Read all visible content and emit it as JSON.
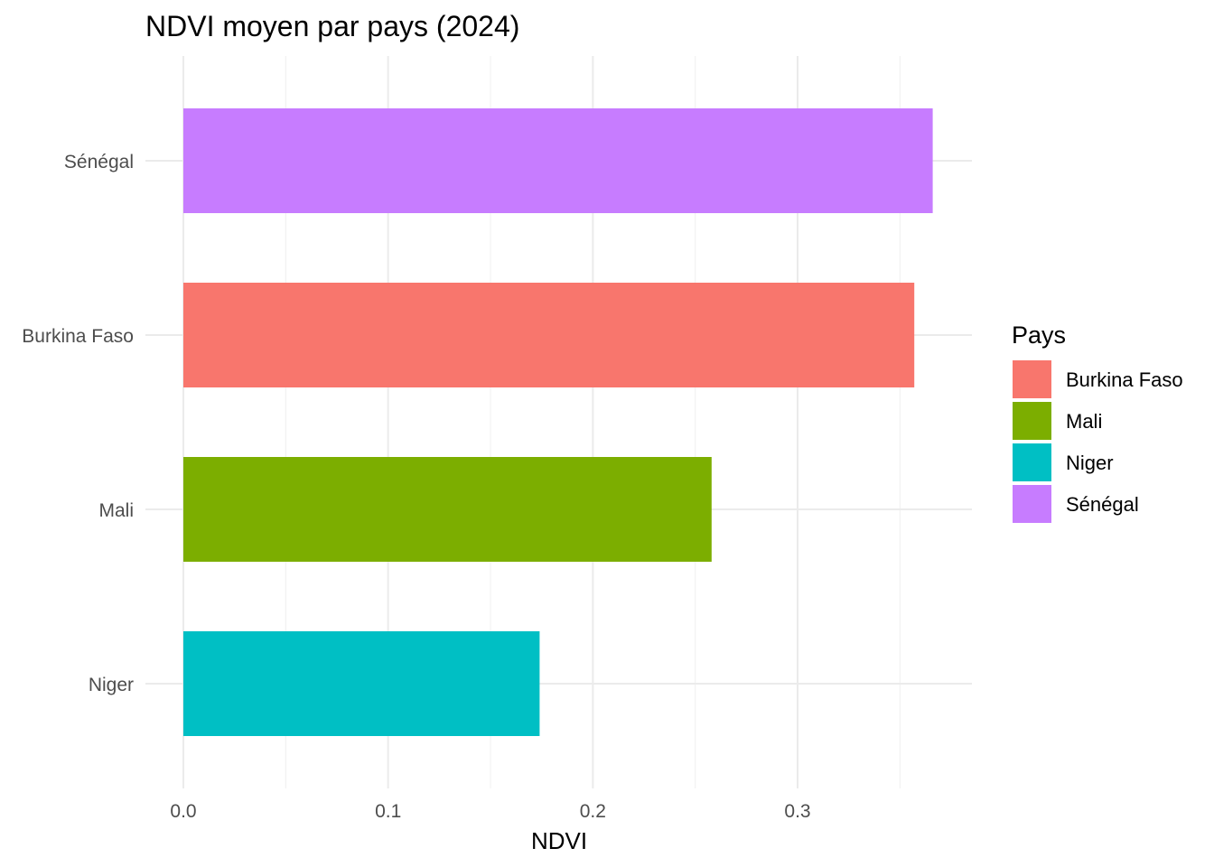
{
  "chart_data": {
    "type": "bar",
    "orientation": "horizontal",
    "title": "NDVI moyen par pays (2024)",
    "xlabel": "NDVI",
    "ylabel": "",
    "categories": [
      "Sénégal",
      "Burkina Faso",
      "Mali",
      "Niger"
    ],
    "values": [
      0.366,
      0.357,
      0.258,
      0.174
    ],
    "colors": [
      "#C77CFF",
      "#F8766D",
      "#7CAE00",
      "#00BFC4"
    ],
    "xlim": [
      0,
      0.385
    ],
    "xticks": [
      0.0,
      0.1,
      0.2,
      0.3
    ],
    "xtick_labels": [
      "0.0",
      "0.1",
      "0.2",
      "0.3"
    ],
    "grid": true,
    "legend": {
      "title": "Pays",
      "placement": "right",
      "entries": [
        {
          "label": "Burkina Faso",
          "color": "#F8766D"
        },
        {
          "label": "Mali",
          "color": "#7CAE00"
        },
        {
          "label": "Niger",
          "color": "#00BFC4"
        },
        {
          "label": "Sénégal",
          "color": "#C77CFF"
        }
      ]
    }
  }
}
